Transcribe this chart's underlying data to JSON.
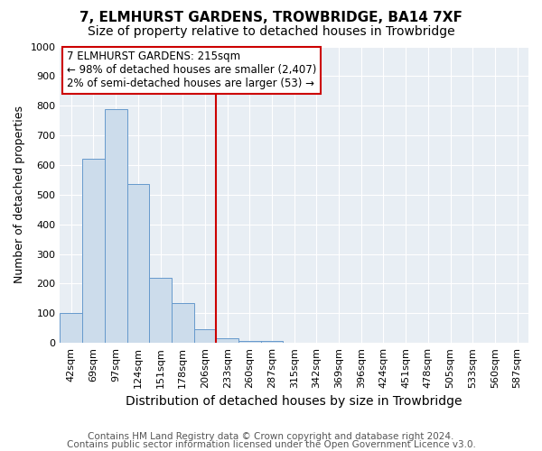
{
  "title": "7, ELMHURST GARDENS, TROWBRIDGE, BA14 7XF",
  "subtitle": "Size of property relative to detached houses in Trowbridge",
  "xlabel": "Distribution of detached houses by size in Trowbridge",
  "ylabel": "Number of detached properties",
  "footer1": "Contains HM Land Registry data © Crown copyright and database right 2024.",
  "footer2": "Contains public sector information licensed under the Open Government Licence v3.0.",
  "categories": [
    "42sqm",
    "69sqm",
    "97sqm",
    "124sqm",
    "151sqm",
    "178sqm",
    "206sqm",
    "233sqm",
    "260sqm",
    "287sqm",
    "315sqm",
    "342sqm",
    "369sqm",
    "396sqm",
    "424sqm",
    "451sqm",
    "478sqm",
    "505sqm",
    "533sqm",
    "560sqm",
    "587sqm"
  ],
  "values": [
    100,
    620,
    790,
    535,
    220,
    135,
    45,
    15,
    8,
    8,
    0,
    0,
    0,
    0,
    0,
    0,
    0,
    0,
    0,
    0,
    0
  ],
  "bar_color": "#ccdceb",
  "bar_edge_color": "#6699cc",
  "ylim": [
    0,
    1000
  ],
  "yticks": [
    0,
    100,
    200,
    300,
    400,
    500,
    600,
    700,
    800,
    900,
    1000
  ],
  "vline_x_index": 6.5,
  "vline_color": "#cc0000",
  "annotation_line1": "7 ELMHURST GARDENS: 215sqm",
  "annotation_line2": "← 98% of detached houses are smaller (2,407)",
  "annotation_line3": "2% of semi-detached houses are larger (53) →",
  "annotation_box_facecolor": "white",
  "annotation_box_edgecolor": "#cc0000",
  "background_color": "#ffffff",
  "plot_bg_color": "#e8eef4",
  "grid_color": "#ffffff",
  "title_fontsize": 11,
  "subtitle_fontsize": 10,
  "xlabel_fontsize": 10,
  "ylabel_fontsize": 9,
  "tick_fontsize": 8,
  "annotation_fontsize": 8.5,
  "footer_fontsize": 7.5
}
